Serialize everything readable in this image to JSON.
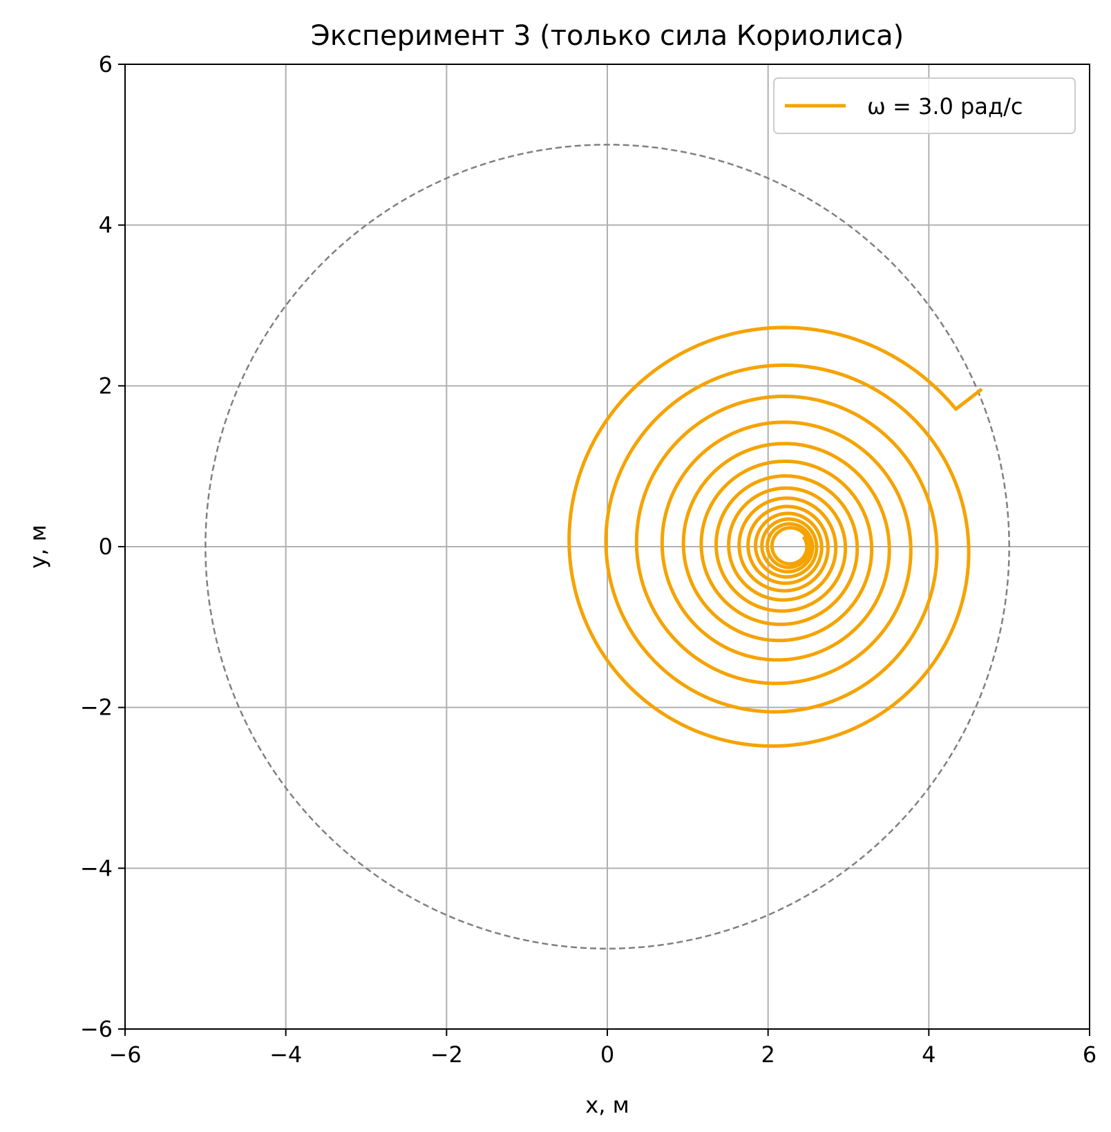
{
  "chart_data": {
    "type": "line",
    "title": "Эксперимент 3 (только сила Кориолиса)",
    "xlabel": "x, м",
    "ylabel": "y, м",
    "xlim": [
      -6,
      6
    ],
    "ylim": [
      -6,
      6
    ],
    "xticks": [
      -6,
      -4,
      -2,
      0,
      2,
      4,
      6
    ],
    "yticks": [
      -6,
      -4,
      -2,
      0,
      2,
      4,
      6
    ],
    "xtick_labels": [
      "−6",
      "−4",
      "−2",
      "0",
      "2",
      "4",
      "6"
    ],
    "ytick_labels": [
      "−6",
      "−4",
      "−2",
      "0",
      "2",
      "4",
      "6"
    ],
    "grid": true,
    "legend": {
      "placement": "upper right",
      "entries": [
        "ω = 3.0 рад/с"
      ]
    },
    "series": [
      {
        "name": "ω = 3.0 рад/с",
        "color": "#f5a300",
        "kind": "spiral",
        "start": [
          4.66,
          1.96
        ],
        "center_start": [
          2.12,
          0.0
        ],
        "center_end": [
          2.28,
          0.0
        ],
        "radius_start": 2.8,
        "radius_end": 0.2,
        "turns": 14
      },
      {
        "name": "boundary",
        "color": "#808080",
        "kind": "circle",
        "center": [
          0,
          0
        ],
        "radius": 5.0,
        "dashed": true
      }
    ]
  }
}
